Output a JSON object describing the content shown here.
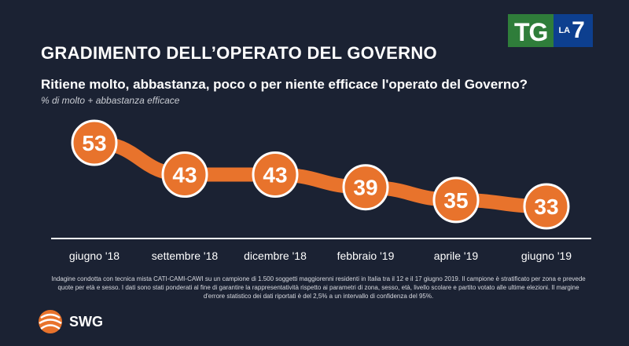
{
  "header": {
    "logo_tg": "TG",
    "logo_la": "LA",
    "logo_seven": "7",
    "title": "GRADIMENTO DELL’OPERATO DEL GOVERNO",
    "question": "Ritiene molto, abbastanza, poco o per niente efficace l'operato del Governo?",
    "subtitle": "% di molto + abbastanza efficace"
  },
  "chart_data": {
    "type": "line",
    "categories": [
      "giugno '18",
      "settembre '18",
      "dicembre '18",
      "febbraio '19",
      "aprile '19",
      "giugno '19"
    ],
    "series": [
      {
        "values": [
          53,
          43,
          43,
          39,
          35,
          33
        ]
      }
    ],
    "xlabel": "",
    "ylabel": "",
    "grid": false,
    "colors": {
      "line": "#e8732c",
      "bubble": "#e8732c",
      "bubble_border": "#ffffff",
      "label": "#ffffff",
      "axis": "#ffffff"
    }
  },
  "footer": {
    "note": "Indagine condotta con tecnica mista CATI-CAMI-CAWI su un campione di 1.500 soggetti maggiorenni residenti in Italia tra il 12 e il 17 giugno 2019. Il campione è stratificato per zona e prevede quote per età e sesso. I dati sono stati ponderati al fine di garantire la rappresentatività rispetto ai parametri di zona, sesso, età, livello scolare e partito votato alle ultime elezioni. Il margine d'errore statistico dei dati riportati è del 2,5% a un intervallo di confidenza del 95%.",
    "brand": "SWG",
    "brand_icon": "globe-icon"
  }
}
